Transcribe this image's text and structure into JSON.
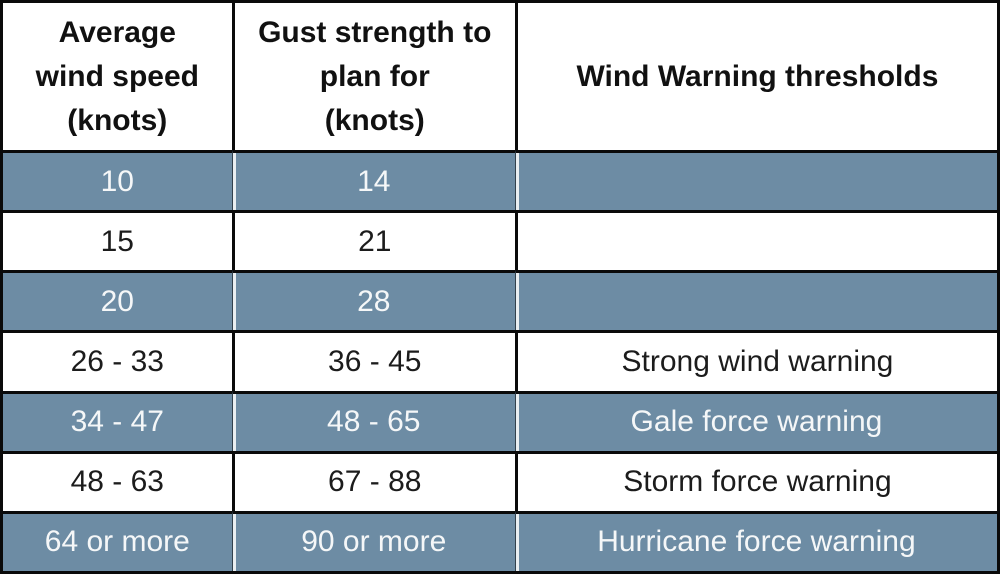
{
  "chart_data": {
    "type": "table",
    "title": "Wind Warning thresholds",
    "columns": [
      "Average wind speed (knots)",
      "Gust strength to plan for (knots)",
      "Wind Warning thresholds"
    ],
    "rows": [
      {
        "cells": [
          "10",
          "14",
          ""
        ],
        "shaded": true
      },
      {
        "cells": [
          "15",
          "21",
          ""
        ],
        "shaded": false
      },
      {
        "cells": [
          "20",
          "28",
          ""
        ],
        "shaded": true
      },
      {
        "cells": [
          "26 - 33",
          "36 - 45",
          "Strong wind warning"
        ],
        "shaded": false
      },
      {
        "cells": [
          "34 - 47",
          "48 - 65",
          "Gale force warning"
        ],
        "shaded": true
      },
      {
        "cells": [
          "48 - 63",
          "67 - 88",
          "Storm force warning"
        ],
        "shaded": false
      },
      {
        "cells": [
          "64 or more",
          "90 or more",
          "Hurricane force warning"
        ],
        "shaded": true
      }
    ],
    "layout": {
      "grid": "black gridlines",
      "shaded_row_indices": [
        0,
        2,
        4,
        6
      ]
    }
  },
  "header_display": [
    "Average\nwind speed\n(knots)",
    "Gust strength to\nplan for\n(knots)",
    "Wind Warning thresholds"
  ],
  "colors": {
    "shaded_row_bg": "#6d8ca4",
    "shaded_row_text": "#f5f7f8",
    "plain_row_bg": "#ffffff",
    "plain_row_text": "#1c1c1c",
    "border": "#0a0a0a",
    "shaded_divider": "#e9eef1"
  }
}
